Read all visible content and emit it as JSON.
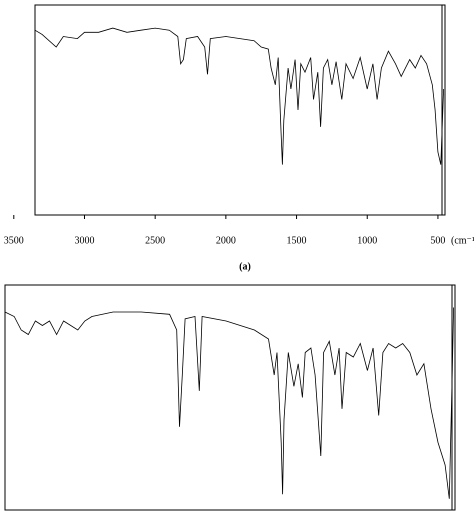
{
  "chart_data": [
    {
      "type": "line",
      "xlim": [
        3350,
        450
      ],
      "ylim": [
        0,
        100
      ],
      "xticks": [
        3500,
        3000,
        2500,
        2000,
        1500,
        1000,
        500
      ],
      "xlabel": "(cm⁻¹)",
      "caption": "(a)",
      "color": "#000000",
      "x": [
        3350,
        3300,
        3200,
        3150,
        3050,
        3000,
        2900,
        2800,
        2700,
        2600,
        2500,
        2400,
        2340,
        2320,
        2300,
        2280,
        2200,
        2150,
        2130,
        2110,
        2000,
        1900,
        1800,
        1750,
        1700,
        1680,
        1650,
        1630,
        1610,
        1600,
        1590,
        1560,
        1540,
        1510,
        1490,
        1470,
        1440,
        1400,
        1380,
        1350,
        1330,
        1310,
        1280,
        1250,
        1220,
        1180,
        1150,
        1100,
        1050,
        1000,
        960,
        930,
        900,
        850,
        800,
        760,
        700,
        660,
        620,
        580,
        540,
        520,
        500,
        480,
        460
      ],
      "values": [
        88,
        86,
        80,
        85,
        84,
        87,
        87,
        89,
        87,
        88,
        89,
        88,
        85,
        72,
        74,
        84,
        85,
        80,
        67,
        84,
        85,
        84,
        83,
        80,
        79,
        70,
        62,
        75,
        40,
        24,
        45,
        70,
        60,
        74,
        50,
        72,
        68,
        75,
        55,
        68,
        42,
        70,
        74,
        62,
        73,
        55,
        72,
        65,
        75,
        60,
        72,
        55,
        70,
        78,
        72,
        66,
        74,
        70,
        76,
        72,
        62,
        50,
        30,
        24,
        60
      ]
    },
    {
      "type": "line",
      "xlim": [
        3565,
        380
      ],
      "ylim": [
        0,
        100
      ],
      "color": "#000000",
      "x": [
        3565,
        3500,
        3450,
        3400,
        3350,
        3300,
        3250,
        3200,
        3150,
        3050,
        3000,
        2950,
        2800,
        2600,
        2400,
        2350,
        2330,
        2310,
        2290,
        2220,
        2190,
        2170,
        2000,
        1800,
        1700,
        1660,
        1640,
        1610,
        1600,
        1590,
        1560,
        1520,
        1490,
        1460,
        1440,
        1400,
        1370,
        1330,
        1310,
        1270,
        1230,
        1200,
        1180,
        1150,
        1100,
        1050,
        1000,
        960,
        920,
        890,
        850,
        800,
        750,
        700,
        650,
        600,
        550,
        500,
        450,
        420,
        400,
        390
      ],
      "values": [
        88,
        86,
        80,
        78,
        84,
        82,
        84,
        78,
        84,
        80,
        84,
        86,
        88,
        88,
        87,
        80,
        37,
        60,
        85,
        86,
        53,
        86,
        84,
        80,
        76,
        60,
        70,
        30,
        7,
        40,
        70,
        55,
        65,
        50,
        70,
        72,
        60,
        24,
        70,
        75,
        60,
        72,
        45,
        70,
        68,
        74,
        62,
        72,
        42,
        70,
        74,
        72,
        74,
        70,
        60,
        65,
        45,
        30,
        20,
        5,
        60,
        90
      ]
    }
  ]
}
